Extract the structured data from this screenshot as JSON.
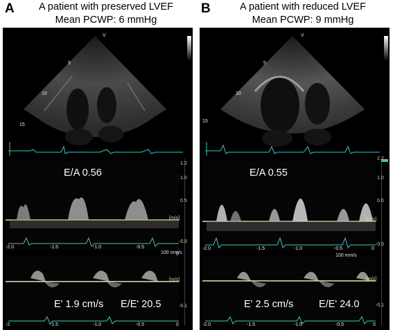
{
  "panels": [
    {
      "letter": "A",
      "title_line1": "A patient with preserved LVEF",
      "title_line2": "Mean PCWP: 6 mmHg",
      "ea": "E/A 0.56",
      "e_prime": "E' 1.9 cm/s",
      "e_e_prime": "E/E' 20.5",
      "sector_depths": [
        "5",
        "10",
        "15"
      ],
      "sector_marker": "V",
      "pw_axis": [
        "1.2",
        "1.0",
        "0.5",
        "[m/s]",
        "-0.5"
      ],
      "pw_time": [
        "-2.0",
        "-1.5",
        "-1.0",
        "-0.5",
        "0"
      ],
      "sweep_label": "100 mm/s",
      "tdi_time": [
        "-2",
        "-1.5",
        "-1.0",
        "-0.5",
        "0"
      ],
      "tdi_unit": "[m/s]",
      "tdi_axis_low": "-0.1"
    },
    {
      "letter": "B",
      "title_line1": "A patient with reduced LVEF",
      "title_line2": "Mean PCWP: 9 mmHg",
      "ea": "E/A 0.55",
      "e_prime": "E' 2.5 cm/s",
      "e_e_prime": "E/E' 24.0",
      "sector_depths": [
        "5",
        "10",
        "15"
      ],
      "sector_marker": "V",
      "pw_axis": [
        "2.2",
        "1.0",
        "0.5",
        "[m/s]",
        "-0.5"
      ],
      "pw_time": [
        "-2.0",
        "-1.5",
        "-1.0",
        "-0.5",
        "0"
      ],
      "sweep_label": "100 mm/s",
      "tdi_time": [
        "-2.0",
        "-1.5",
        "-1.0",
        "-0.5",
        "0"
      ],
      "tdi_unit": "[m/s]",
      "tdi_axis_low": "-0.1"
    }
  ],
  "colors": {
    "background": "#000000",
    "baseline": "#e8e89a",
    "ecg": "#3fc6c0",
    "echo": "#d8d8d8"
  }
}
